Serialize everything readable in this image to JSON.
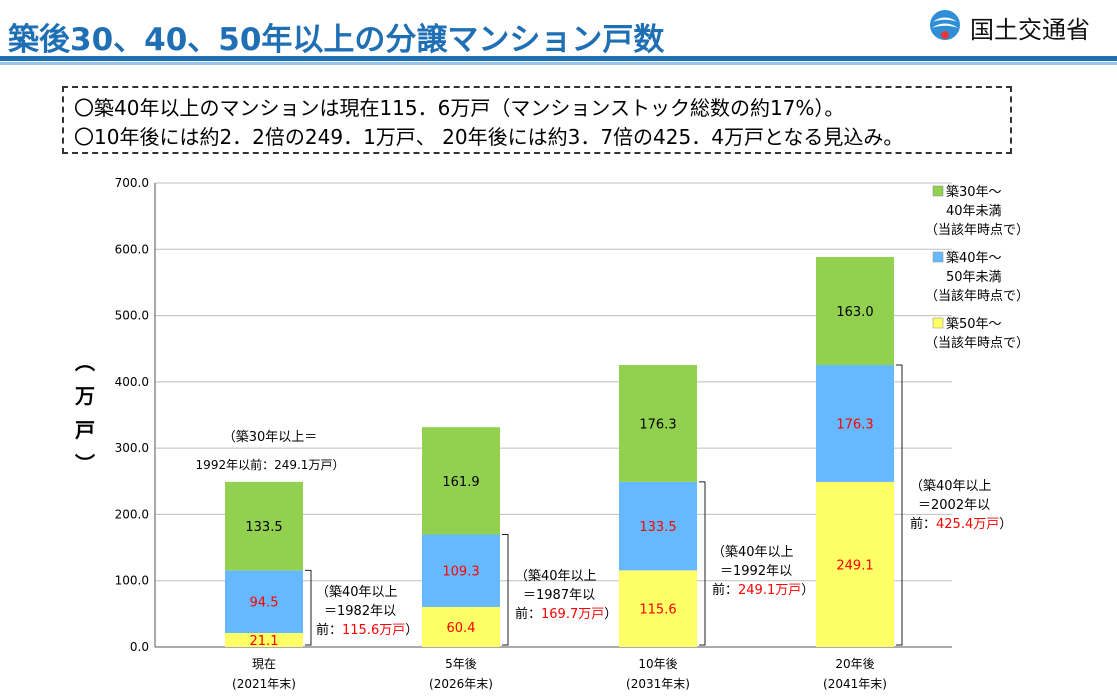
{
  "title": "築後30、40、50年以上の分譲マンション戸数",
  "logo": {
    "text": "国土交通省",
    "icon": "mlit-logo-icon"
  },
  "summary": [
    "〇築40年以上のマンションは現在115．6万戸（マンションストック総数の約17%）。",
    "〇10年後には約2．2倍の249．1万戸、 20年後には約3．7倍の425．4万戸となる見込み。"
  ],
  "colors": {
    "green": "#92d050",
    "blue": "#66b8ff",
    "yellow": "#ffff66",
    "accent": "#1f6fb5",
    "red_text": "#ff0000"
  },
  "chart_data": {
    "type": "bar",
    "stacked": true,
    "ylabel": "（万戸）",
    "ylim": [
      0,
      700
    ],
    "yticks": [
      "0.0",
      "100.0",
      "200.0",
      "300.0",
      "400.0",
      "500.0",
      "600.0",
      "700.0"
    ],
    "grid": true,
    "legend_position": "right",
    "categories": [
      {
        "label": "現在",
        "sub": "(2021年末)"
      },
      {
        "label": "5年後",
        "sub": "(2026年末)"
      },
      {
        "label": "10年後",
        "sub": "(2031年末)"
      },
      {
        "label": "20年後",
        "sub": "(2041年末)"
      }
    ],
    "series": [
      {
        "name": "築50年～（当該年時点で）",
        "legend": [
          "築50年～",
          "（当該年時点で）"
        ],
        "color": "#ffff66",
        "values": [
          21.1,
          60.4,
          115.6,
          249.1
        ],
        "labels": [
          "21.1",
          "60.4",
          "115.6",
          "249.1"
        ]
      },
      {
        "name": "築40年～50年未満（当該年時点で）",
        "legend": [
          "築40年～",
          "50年未満",
          "（当該年時点で）"
        ],
        "color": "#66b8ff",
        "values": [
          94.5,
          109.3,
          133.5,
          176.3
        ],
        "labels": [
          "94.5",
          "109.3",
          "133.5",
          "176.3"
        ]
      },
      {
        "name": "築30年～40年未満（当該年時点で）",
        "legend": [
          "築30年～",
          "40年未満",
          "（当該年時点で）"
        ],
        "color": "#92d050",
        "values": [
          133.5,
          161.9,
          176.3,
          163.0
        ],
        "labels": [
          "133.5",
          "161.9",
          "176.3",
          "163.0"
        ]
      }
    ],
    "annotations": [
      {
        "lines": [
          "（築30年以上＝",
          "1992年以前：249.1万戸）"
        ]
      },
      {
        "lines": [
          "（築40年以上",
          "＝1982年以",
          "前："
        ],
        "highlight": "115.6万戸",
        "close": "）"
      },
      {
        "lines": [
          "（築40年以上",
          "＝1987年以",
          "前："
        ],
        "highlight": "169.7万戸",
        "close": "）"
      },
      {
        "lines": [
          "（築40年以上",
          "＝1992年以",
          "前："
        ],
        "highlight": "249.1万戸",
        "close": "）"
      },
      {
        "lines": [
          "（築40年以上",
          "＝2002年以",
          "前："
        ],
        "highlight": "425.4万戸",
        "close": "）"
      }
    ]
  }
}
